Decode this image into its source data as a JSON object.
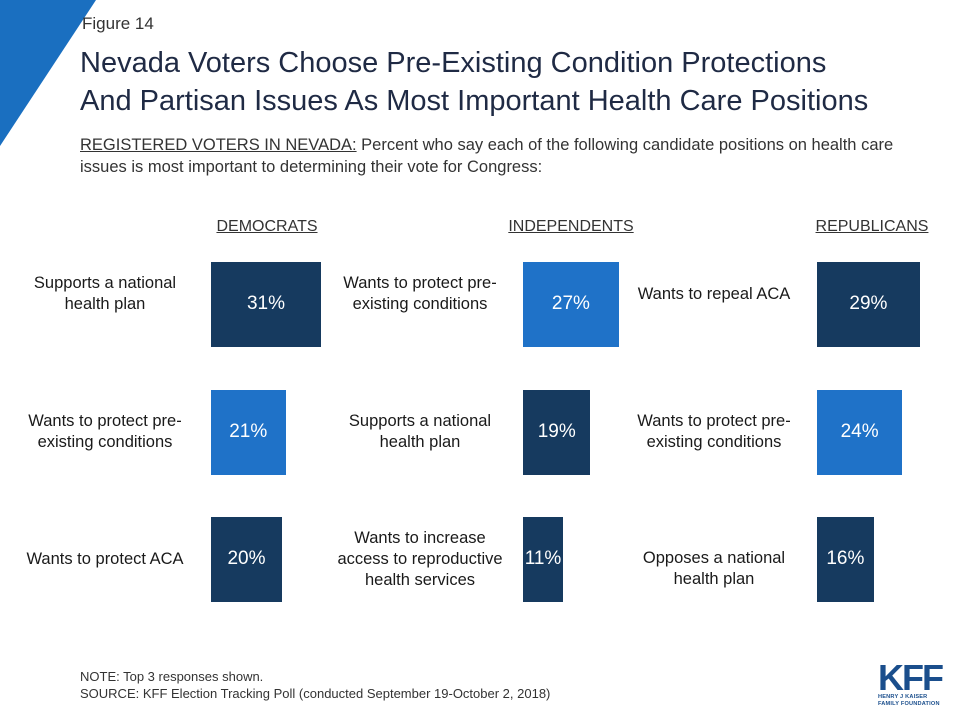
{
  "figure_label": "Figure 14",
  "title_lines": [
    "Nevada Voters Choose Pre-Existing Condition Protections",
    "And Partisan Issues As Most Important Health Care Positions"
  ],
  "subtitle": {
    "lead": "REGISTERED VOTERS IN NEVADA:",
    "text": " Percent who say each of the following candidate positions on health care issues is most important to determining their vote for Congress:"
  },
  "colors": {
    "dark": "#163a5f",
    "light": "#1f72c8",
    "corner": "#1a6fc0"
  },
  "chart_data": {
    "type": "table",
    "groups": [
      {
        "name": "DEMOCRATS",
        "items": [
          {
            "label": "Supports a national health plan",
            "value": 31,
            "text": "31%",
            "shade": "dark"
          },
          {
            "label": "Wants to protect pre-existing conditions",
            "value": 21,
            "text": "21%",
            "shade": "light"
          },
          {
            "label": "Wants to protect ACA",
            "value": 20,
            "text": "20%",
            "shade": "dark"
          }
        ]
      },
      {
        "name": "INDEPENDENTS",
        "items": [
          {
            "label": "Wants to protect pre-existing conditions",
            "value": 27,
            "text": "27%",
            "shade": "light"
          },
          {
            "label": "Supports a national health plan",
            "value": 19,
            "text": "19%",
            "shade": "dark"
          },
          {
            "label": "Wants to increase access to reproductive health services",
            "value": 11,
            "text": "11%",
            "shade": "dark"
          }
        ]
      },
      {
        "name": "REPUBLICANS",
        "items": [
          {
            "label": "Wants to repeal ACA",
            "value": 29,
            "text": "29%",
            "shade": "dark"
          },
          {
            "label": "Wants to protect pre-existing conditions",
            "value": 24,
            "text": "24%",
            "shade": "light"
          },
          {
            "label": "Opposes a national health plan",
            "value": 16,
            "text": "16%",
            "shade": "dark"
          }
        ]
      }
    ]
  },
  "note": "NOTE: Top 3 responses shown.",
  "source": "SOURCE: KFF Election Tracking Poll (conducted September 19-October 2, 2018)",
  "logo": {
    "wordmark": "KFF",
    "line1": "HENRY J KAISER",
    "line2": "FAMILY FOUNDATION"
  }
}
